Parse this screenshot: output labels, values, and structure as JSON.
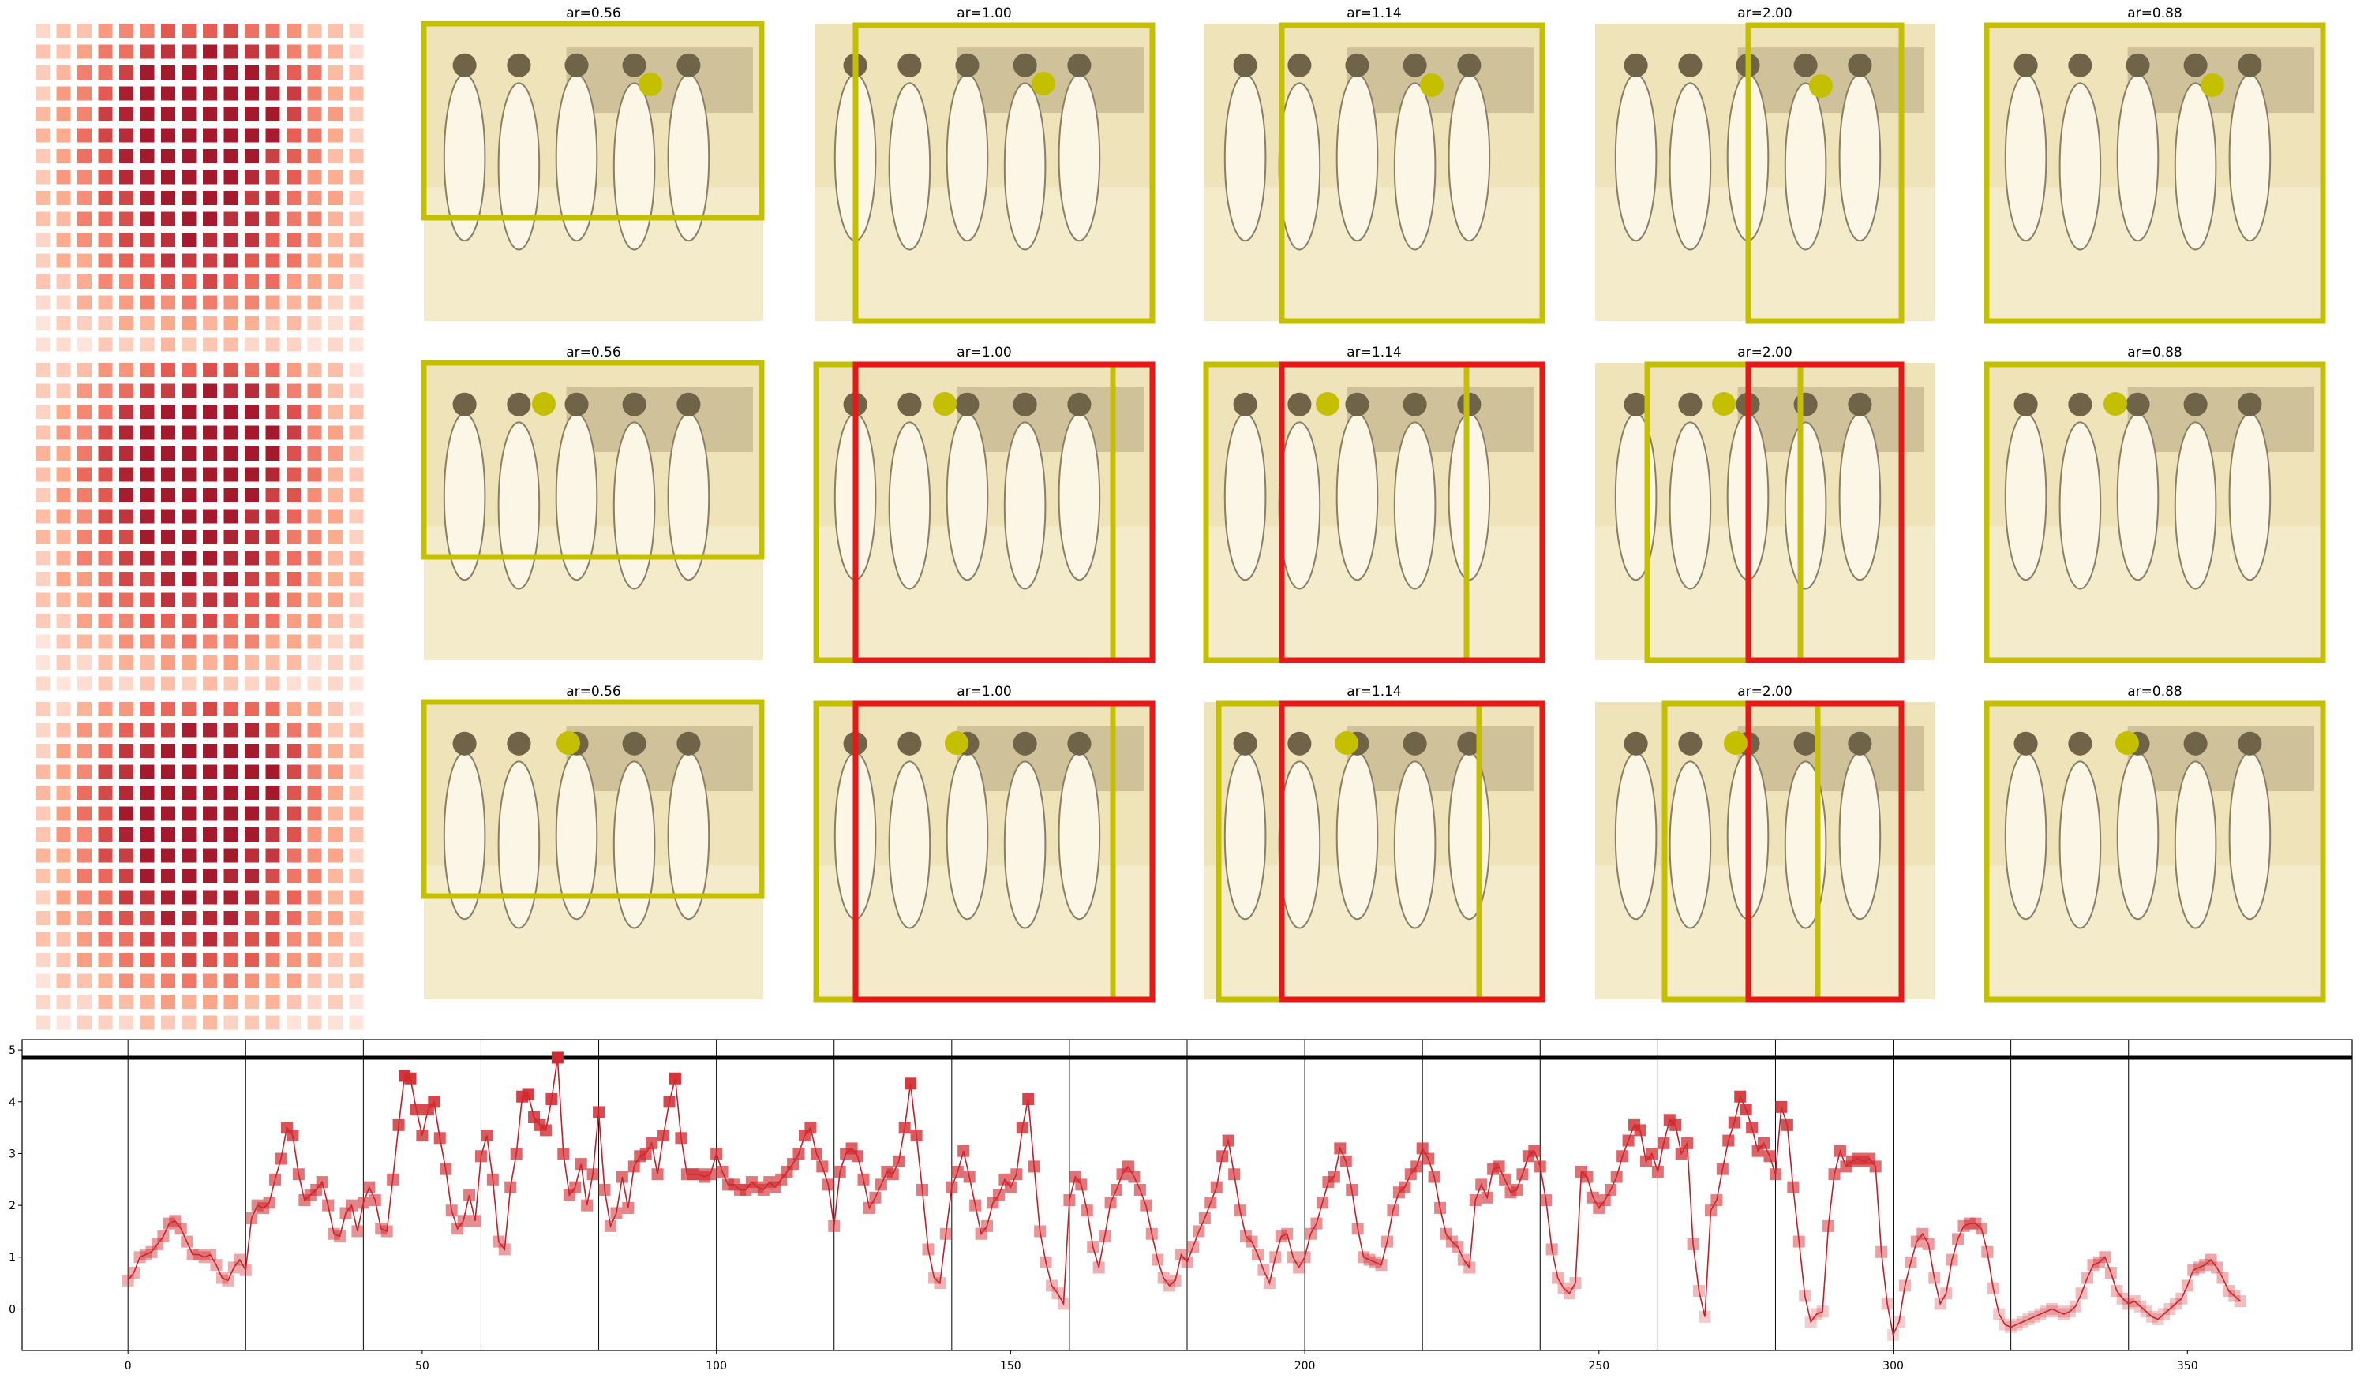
{
  "colors": {
    "crop_box": "#c4c000",
    "alt_box": "#e81818",
    "marker": "#d02a30",
    "line": "#c0202a",
    "photo_tint": "#efe3ba",
    "threshold": "#000000"
  },
  "panel_titles": [
    "ar=0.56",
    "ar=1.00",
    "ar=1.14",
    "ar=2.00",
    "ar=0.88"
  ],
  "chart_data": [
    {
      "type": "heatmap",
      "grid": [
        16,
        16
      ],
      "description_note": "",
      "rows": 3
    },
    {
      "type": "line",
      "markers": "square",
      "xlim": [
        -18,
        378
      ],
      "ylim": [
        -0.8,
        5.2
      ],
      "xticks": [
        0,
        50,
        100,
        150,
        200,
        250,
        300,
        350
      ],
      "yticks": [
        0,
        1,
        2,
        3,
        4,
        5
      ],
      "hline": 4.85,
      "vlines": [
        0,
        20,
        40,
        60,
        80,
        100,
        120,
        140,
        160,
        180,
        200,
        220,
        240,
        260,
        280,
        300,
        320,
        340
      ],
      "points": [
        [
          0,
          0.55
        ],
        [
          1,
          0.7
        ],
        [
          2,
          1.0
        ],
        [
          3,
          1.05
        ],
        [
          4,
          1.1
        ],
        [
          5,
          1.25
        ],
        [
          6,
          1.4
        ],
        [
          7,
          1.65
        ],
        [
          8,
          1.7
        ],
        [
          9,
          1.55
        ],
        [
          10,
          1.3
        ],
        [
          11,
          1.05
        ],
        [
          12,
          1.05
        ],
        [
          13,
          1.0
        ],
        [
          14,
          1.05
        ],
        [
          15,
          0.85
        ],
        [
          16,
          0.6
        ],
        [
          17,
          0.55
        ],
        [
          18,
          0.8
        ],
        [
          19,
          0.95
        ],
        [
          20,
          0.75
        ],
        [
          21,
          1.75
        ],
        [
          22,
          2.0
        ],
        [
          23,
          1.95
        ],
        [
          24,
          2.05
        ],
        [
          25,
          2.5
        ],
        [
          26,
          2.9
        ],
        [
          27,
          3.5
        ],
        [
          28,
          3.35
        ],
        [
          29,
          2.6
        ],
        [
          30,
          2.1
        ],
        [
          31,
          2.2
        ],
        [
          32,
          2.3
        ],
        [
          33,
          2.45
        ],
        [
          34,
          2.0
        ],
        [
          35,
          1.45
        ],
        [
          36,
          1.4
        ],
        [
          37,
          1.85
        ],
        [
          38,
          2.0
        ],
        [
          39,
          1.5
        ],
        [
          40,
          2.05
        ],
        [
          41,
          2.35
        ],
        [
          42,
          2.1
        ],
        [
          43,
          1.55
        ],
        [
          44,
          1.5
        ],
        [
          45,
          2.5
        ],
        [
          46,
          3.55
        ],
        [
          47,
          4.5
        ],
        [
          48,
          4.45
        ],
        [
          49,
          3.85
        ],
        [
          50,
          3.35
        ],
        [
          51,
          3.85
        ],
        [
          52,
          4.0
        ],
        [
          53,
          3.3
        ],
        [
          54,
          2.7
        ],
        [
          55,
          1.9
        ],
        [
          56,
          1.55
        ],
        [
          57,
          1.7
        ],
        [
          58,
          2.2
        ],
        [
          59,
          1.7
        ],
        [
          60,
          2.95
        ],
        [
          61,
          3.35
        ],
        [
          62,
          2.5
        ],
        [
          63,
          1.3
        ],
        [
          64,
          1.15
        ],
        [
          65,
          2.35
        ],
        [
          66,
          3.0
        ],
        [
          67,
          4.1
        ],
        [
          68,
          4.15
        ],
        [
          69,
          3.7
        ],
        [
          70,
          3.55
        ],
        [
          71,
          3.45
        ],
        [
          72,
          4.05
        ],
        [
          73,
          4.85
        ],
        [
          74,
          3.0
        ],
        [
          75,
          2.2
        ],
        [
          76,
          2.35
        ],
        [
          77,
          2.8
        ],
        [
          78,
          2.0
        ],
        [
          79,
          2.6
        ],
        [
          80,
          3.8
        ],
        [
          81,
          2.3
        ],
        [
          82,
          1.6
        ],
        [
          83,
          1.85
        ],
        [
          84,
          2.55
        ],
        [
          85,
          1.95
        ],
        [
          86,
          2.75
        ],
        [
          87,
          2.95
        ],
        [
          88,
          3.0
        ],
        [
          89,
          3.2
        ],
        [
          90,
          2.6
        ],
        [
          91,
          3.35
        ],
        [
          92,
          4.0
        ],
        [
          93,
          4.45
        ],
        [
          94,
          3.3
        ],
        [
          95,
          2.6
        ],
        [
          96,
          2.6
        ],
        [
          97,
          2.6
        ],
        [
          98,
          2.55
        ],
        [
          99,
          2.6
        ],
        [
          100,
          3.0
        ],
        [
          101,
          2.65
        ],
        [
          102,
          2.4
        ],
        [
          103,
          2.4
        ],
        [
          104,
          2.3
        ],
        [
          105,
          2.3
        ],
        [
          106,
          2.45
        ],
        [
          107,
          2.35
        ],
        [
          108,
          2.3
        ],
        [
          109,
          2.45
        ],
        [
          110,
          2.35
        ],
        [
          111,
          2.5
        ],
        [
          112,
          2.65
        ],
        [
          113,
          2.8
        ],
        [
          114,
          3.0
        ],
        [
          115,
          3.35
        ],
        [
          116,
          3.5
        ],
        [
          117,
          3.0
        ],
        [
          118,
          2.75
        ],
        [
          119,
          2.4
        ],
        [
          120,
          1.6
        ],
        [
          121,
          2.65
        ],
        [
          122,
          3.0
        ],
        [
          123,
          3.1
        ],
        [
          124,
          2.95
        ],
        [
          125,
          2.5
        ],
        [
          126,
          1.95
        ],
        [
          127,
          2.15
        ],
        [
          128,
          2.4
        ],
        [
          129,
          2.65
        ],
        [
          130,
          2.6
        ],
        [
          131,
          2.85
        ],
        [
          132,
          3.5
        ],
        [
          133,
          4.35
        ],
        [
          134,
          3.35
        ],
        [
          135,
          2.3
        ],
        [
          136,
          1.15
        ],
        [
          137,
          0.6
        ],
        [
          138,
          0.5
        ],
        [
          139,
          1.45
        ],
        [
          140,
          2.35
        ],
        [
          141,
          2.65
        ],
        [
          142,
          3.05
        ],
        [
          143,
          2.55
        ],
        [
          144,
          2.0
        ],
        [
          145,
          1.45
        ],
        [
          146,
          1.6
        ],
        [
          147,
          2.05
        ],
        [
          148,
          2.2
        ],
        [
          149,
          2.5
        ],
        [
          150,
          2.35
        ],
        [
          151,
          2.6
        ],
        [
          152,
          3.5
        ],
        [
          153,
          4.05
        ],
        [
          154,
          2.75
        ],
        [
          155,
          1.5
        ],
        [
          156,
          0.9
        ],
        [
          157,
          0.45
        ],
        [
          158,
          0.3
        ],
        [
          159,
          0.1
        ],
        [
          160,
          2.1
        ],
        [
          161,
          2.55
        ],
        [
          162,
          2.4
        ],
        [
          163,
          1.9
        ],
        [
          164,
          1.2
        ],
        [
          165,
          0.8
        ],
        [
          166,
          1.4
        ],
        [
          167,
          2.05
        ],
        [
          168,
          2.3
        ],
        [
          169,
          2.6
        ],
        [
          170,
          2.75
        ],
        [
          171,
          2.55
        ],
        [
          172,
          2.3
        ],
        [
          173,
          2.0
        ],
        [
          174,
          1.45
        ],
        [
          175,
          0.95
        ],
        [
          176,
          0.6
        ],
        [
          177,
          0.45
        ],
        [
          178,
          0.55
        ],
        [
          179,
          1.05
        ],
        [
          180,
          0.9
        ],
        [
          181,
          1.2
        ],
        [
          182,
          1.5
        ],
        [
          183,
          1.75
        ],
        [
          184,
          2.05
        ],
        [
          185,
          2.35
        ],
        [
          186,
          2.95
        ],
        [
          187,
          3.25
        ],
        [
          188,
          2.6
        ],
        [
          189,
          1.9
        ],
        [
          190,
          1.4
        ],
        [
          191,
          1.3
        ],
        [
          192,
          1.05
        ],
        [
          193,
          0.75
        ],
        [
          194,
          0.5
        ],
        [
          195,
          1.0
        ],
        [
          196,
          1.4
        ],
        [
          197,
          1.45
        ],
        [
          198,
          1.0
        ],
        [
          199,
          0.8
        ],
        [
          200,
          1.0
        ],
        [
          201,
          1.45
        ],
        [
          202,
          1.65
        ],
        [
          203,
          2.05
        ],
        [
          204,
          2.45
        ],
        [
          205,
          2.55
        ],
        [
          206,
          3.1
        ],
        [
          207,
          2.85
        ],
        [
          208,
          2.3
        ],
        [
          209,
          1.55
        ],
        [
          210,
          1.0
        ],
        [
          211,
          0.95
        ],
        [
          212,
          0.9
        ],
        [
          213,
          0.85
        ],
        [
          214,
          1.3
        ],
        [
          215,
          1.9
        ],
        [
          216,
          2.25
        ],
        [
          217,
          2.35
        ],
        [
          218,
          2.6
        ],
        [
          219,
          2.75
        ],
        [
          220,
          3.1
        ],
        [
          221,
          2.9
        ],
        [
          222,
          2.55
        ],
        [
          223,
          1.95
        ],
        [
          224,
          1.45
        ],
        [
          225,
          1.3
        ],
        [
          226,
          1.2
        ],
        [
          227,
          0.95
        ],
        [
          228,
          0.8
        ],
        [
          229,
          2.1
        ],
        [
          230,
          2.4
        ],
        [
          231,
          2.15
        ],
        [
          232,
          2.7
        ],
        [
          233,
          2.75
        ],
        [
          234,
          2.5
        ],
        [
          235,
          2.25
        ],
        [
          236,
          2.3
        ],
        [
          237,
          2.6
        ],
        [
          238,
          2.95
        ],
        [
          239,
          3.05
        ],
        [
          240,
          2.75
        ],
        [
          241,
          2.1
        ],
        [
          242,
          1.15
        ],
        [
          243,
          0.6
        ],
        [
          244,
          0.4
        ],
        [
          245,
          0.3
        ],
        [
          246,
          0.5
        ],
        [
          247,
          2.65
        ],
        [
          248,
          2.55
        ],
        [
          249,
          2.15
        ],
        [
          250,
          1.95
        ],
        [
          251,
          2.1
        ],
        [
          252,
          2.3
        ],
        [
          253,
          2.55
        ],
        [
          254,
          2.95
        ],
        [
          255,
          3.25
        ],
        [
          256,
          3.55
        ],
        [
          257,
          3.45
        ],
        [
          258,
          2.85
        ],
        [
          259,
          3.0
        ],
        [
          260,
          2.65
        ],
        [
          261,
          3.2
        ],
        [
          262,
          3.65
        ],
        [
          263,
          3.55
        ],
        [
          264,
          3.0
        ],
        [
          265,
          3.2
        ],
        [
          266,
          1.25
        ],
        [
          267,
          0.35
        ],
        [
          268,
          -0.15
        ],
        [
          269,
          1.9
        ],
        [
          270,
          2.1
        ],
        [
          271,
          2.7
        ],
        [
          272,
          3.25
        ],
        [
          273,
          3.6
        ],
        [
          274,
          4.1
        ],
        [
          275,
          3.85
        ],
        [
          276,
          3.5
        ],
        [
          277,
          3.05
        ],
        [
          278,
          3.2
        ],
        [
          279,
          2.95
        ],
        [
          280,
          2.6
        ],
        [
          281,
          3.9
        ],
        [
          282,
          3.55
        ],
        [
          283,
          2.35
        ],
        [
          284,
          1.3
        ],
        [
          285,
          0.25
        ],
        [
          286,
          -0.25
        ],
        [
          287,
          -0.1
        ],
        [
          288,
          -0.05
        ],
        [
          289,
          1.6
        ],
        [
          290,
          2.6
        ],
        [
          291,
          3.05
        ],
        [
          292,
          2.75
        ],
        [
          293,
          2.85
        ],
        [
          294,
          2.9
        ],
        [
          295,
          2.85
        ],
        [
          296,
          2.9
        ],
        [
          297,
          2.75
        ],
        [
          298,
          1.1
        ],
        [
          299,
          0.1
        ],
        [
          300,
          -0.5
        ],
        [
          301,
          -0.25
        ],
        [
          302,
          0.45
        ],
        [
          303,
          0.9
        ],
        [
          304,
          1.3
        ],
        [
          305,
          1.45
        ],
        [
          306,
          1.25
        ],
        [
          307,
          0.6
        ],
        [
          308,
          0.1
        ],
        [
          309,
          0.3
        ],
        [
          310,
          0.95
        ],
        [
          311,
          1.35
        ],
        [
          312,
          1.6
        ],
        [
          313,
          1.65
        ],
        [
          314,
          1.65
        ],
        [
          315,
          1.55
        ],
        [
          316,
          1.1
        ],
        [
          317,
          0.4
        ],
        [
          318,
          -0.1
        ],
        [
          319,
          -0.3
        ],
        [
          320,
          -0.35
        ],
        [
          321,
          -0.3
        ],
        [
          322,
          -0.25
        ],
        [
          323,
          -0.2
        ],
        [
          324,
          -0.15
        ],
        [
          325,
          -0.1
        ],
        [
          326,
          -0.05
        ],
        [
          327,
          0.0
        ],
        [
          328,
          -0.05
        ],
        [
          329,
          -0.1
        ],
        [
          330,
          -0.05
        ],
        [
          331,
          0.05
        ],
        [
          332,
          0.3
        ],
        [
          333,
          0.6
        ],
        [
          334,
          0.85
        ],
        [
          335,
          0.9
        ],
        [
          336,
          1.0
        ],
        [
          337,
          0.7
        ],
        [
          338,
          0.35
        ],
        [
          339,
          0.2
        ],
        [
          340,
          0.1
        ],
        [
          341,
          0.15
        ],
        [
          342,
          0.05
        ],
        [
          343,
          -0.05
        ],
        [
          344,
          -0.15
        ],
        [
          345,
          -0.2
        ],
        [
          346,
          -0.1
        ],
        [
          347,
          0.0
        ],
        [
          348,
          0.1
        ],
        [
          349,
          0.2
        ],
        [
          350,
          0.45
        ],
        [
          351,
          0.75
        ],
        [
          352,
          0.8
        ],
        [
          353,
          0.85
        ],
        [
          354,
          0.95
        ],
        [
          355,
          0.8
        ],
        [
          356,
          0.6
        ],
        [
          357,
          0.35
        ],
        [
          358,
          0.25
        ],
        [
          359,
          0.15
        ]
      ]
    }
  ]
}
